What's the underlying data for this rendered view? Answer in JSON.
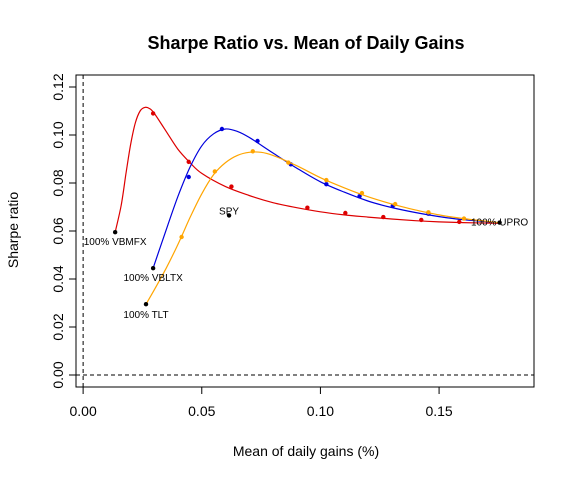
{
  "chart_data": {
    "type": "line",
    "title": "Sharpe Ratio vs. Mean of Daily Gains",
    "xlabel": "Mean of daily gains (%)",
    "ylabel": "Sharpe ratio",
    "xlim": [
      -0.003,
      0.19
    ],
    "ylim": [
      -0.005,
      0.125
    ],
    "x_ticks": [
      0.0,
      0.05,
      0.1,
      0.15
    ],
    "x_tick_labels": [
      "0.00",
      "0.05",
      "0.10",
      "0.15"
    ],
    "y_ticks": [
      0.0,
      0.02,
      0.04,
      0.06,
      0.08,
      0.1,
      0.12
    ],
    "y_tick_labels": [
      "0.00",
      "0.02",
      "0.04",
      "0.06",
      "0.08",
      "0.10",
      "0.12"
    ],
    "grid": false,
    "reference_lines": {
      "x": 0,
      "y": 0,
      "style": "dashed"
    },
    "series": [
      {
        "color": "#dd0000",
        "curve": [
          [
            0.0135,
            0.0595
          ],
          [
            0.016,
            0.0705
          ],
          [
            0.018,
            0.0835
          ],
          [
            0.02,
            0.096
          ],
          [
            0.022,
            0.105
          ],
          [
            0.024,
            0.11
          ],
          [
            0.026,
            0.1115
          ],
          [
            0.028,
            0.111
          ],
          [
            0.03,
            0.109
          ],
          [
            0.035,
            0.1015
          ],
          [
            0.04,
            0.094
          ],
          [
            0.045,
            0.0885
          ],
          [
            0.05,
            0.084
          ],
          [
            0.06,
            0.0785
          ],
          [
            0.07,
            0.0748
          ],
          [
            0.08,
            0.0718
          ],
          [
            0.09,
            0.0697
          ],
          [
            0.1,
            0.068
          ],
          [
            0.11,
            0.0667
          ],
          [
            0.12,
            0.0658
          ],
          [
            0.13,
            0.065
          ],
          [
            0.14,
            0.0643
          ],
          [
            0.15,
            0.0638
          ],
          [
            0.16,
            0.0635
          ],
          [
            0.175,
            0.0632
          ]
        ],
        "points": [
          [
            0.0295,
            0.109
          ],
          [
            0.0445,
            0.0888
          ],
          [
            0.0625,
            0.0785
          ],
          [
            0.0945,
            0.0697
          ],
          [
            0.1105,
            0.0675
          ],
          [
            0.1265,
            0.0658
          ],
          [
            0.1425,
            0.0646
          ],
          [
            0.1585,
            0.0638
          ]
        ]
      },
      {
        "color": "#0000dd",
        "curve": [
          [
            0.0295,
            0.0445
          ],
          [
            0.035,
            0.0605
          ],
          [
            0.04,
            0.0745
          ],
          [
            0.045,
            0.0865
          ],
          [
            0.05,
            0.0955
          ],
          [
            0.055,
            0.1005
          ],
          [
            0.06,
            0.1025
          ],
          [
            0.065,
            0.1015
          ],
          [
            0.07,
            0.099
          ],
          [
            0.08,
            0.0925
          ],
          [
            0.09,
            0.0862
          ],
          [
            0.1,
            0.0805
          ],
          [
            0.11,
            0.0762
          ],
          [
            0.12,
            0.0725
          ],
          [
            0.13,
            0.0698
          ],
          [
            0.14,
            0.0677
          ],
          [
            0.15,
            0.066
          ],
          [
            0.16,
            0.0647
          ],
          [
            0.175,
            0.0635
          ]
        ],
        "points": [
          [
            0.0445,
            0.0825
          ],
          [
            0.0585,
            0.1025
          ],
          [
            0.0735,
            0.0975
          ],
          [
            0.0875,
            0.0878
          ],
          [
            0.1025,
            0.0795
          ],
          [
            0.1165,
            0.0745
          ],
          [
            0.1305,
            0.0705
          ],
          [
            0.1455,
            0.0672
          ]
        ]
      },
      {
        "color": "#ffa500",
        "curve": [
          [
            0.0265,
            0.0295
          ],
          [
            0.03,
            0.0355
          ],
          [
            0.035,
            0.0445
          ],
          [
            0.04,
            0.0545
          ],
          [
            0.045,
            0.0655
          ],
          [
            0.05,
            0.0755
          ],
          [
            0.055,
            0.0835
          ],
          [
            0.06,
            0.0885
          ],
          [
            0.065,
            0.0915
          ],
          [
            0.07,
            0.0928
          ],
          [
            0.075,
            0.0928
          ],
          [
            0.08,
            0.0915
          ],
          [
            0.09,
            0.0872
          ],
          [
            0.1,
            0.0822
          ],
          [
            0.11,
            0.078
          ],
          [
            0.12,
            0.0743
          ],
          [
            0.13,
            0.0713
          ],
          [
            0.14,
            0.0688
          ],
          [
            0.15,
            0.0667
          ],
          [
            0.16,
            0.0652
          ],
          [
            0.175,
            0.0635
          ]
        ],
        "points": [
          [
            0.0415,
            0.0575
          ],
          [
            0.0555,
            0.0848
          ],
          [
            0.0715,
            0.0932
          ],
          [
            0.0865,
            0.0885
          ],
          [
            0.1025,
            0.0812
          ],
          [
            0.1175,
            0.0758
          ],
          [
            0.1315,
            0.0712
          ],
          [
            0.1455,
            0.0678
          ],
          [
            0.1605,
            0.0652
          ]
        ]
      }
    ],
    "labeled_points": [
      {
        "label": "100% VBMFX",
        "x": 0.0135,
        "y": 0.0595
      },
      {
        "label": "100% VBLTX",
        "x": 0.0295,
        "y": 0.0445
      },
      {
        "label": "100% TLT",
        "x": 0.0265,
        "y": 0.0295
      },
      {
        "label": "SPY",
        "x": 0.0615,
        "y": 0.0665
      },
      {
        "label": "100% UPRO",
        "x": 0.1755,
        "y": 0.0635
      }
    ]
  }
}
